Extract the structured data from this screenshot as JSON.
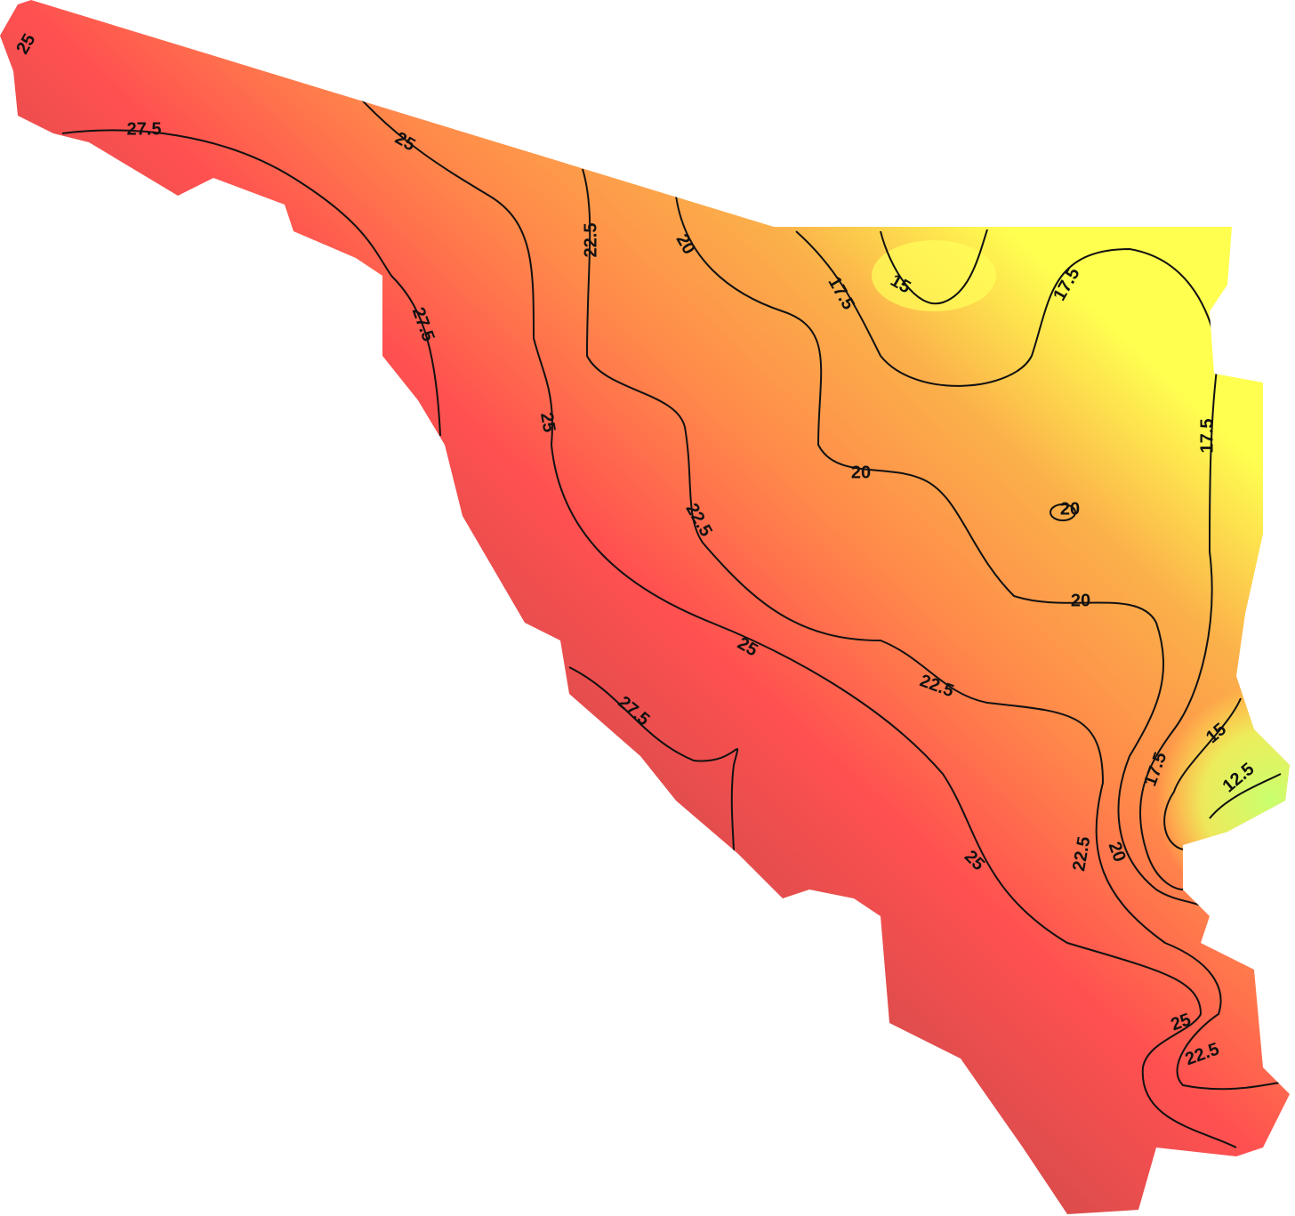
{
  "contour_labels": [
    "25",
    "27.5",
    "25",
    "22.5",
    "20",
    "17.5",
    "15",
    "17.5",
    "27.5",
    "25",
    "20",
    "22.5",
    "20",
    "17.5",
    "20",
    "25",
    "22.5",
    "27.5",
    "17.5",
    "15",
    "12.5",
    "22.5",
    "20",
    "25",
    "25",
    "22.5"
  ]
}
